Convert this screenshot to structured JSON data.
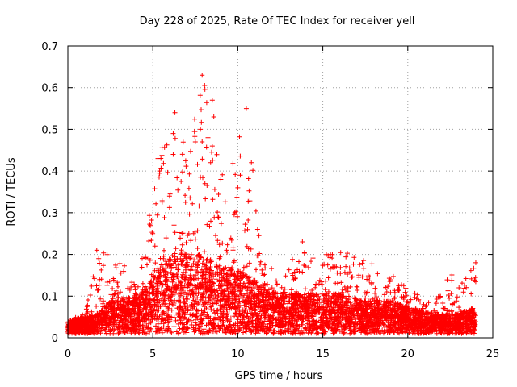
{
  "chart_data": {
    "type": "scatter",
    "title": "Day 228 of 2025, Rate Of TEC Index for receiver yell",
    "xlabel": "GPS time / hours",
    "ylabel": "ROTI / TECUs",
    "xlim": [
      0,
      25
    ],
    "ylim": [
      0,
      0.7
    ],
    "xticks": [
      0,
      5,
      10,
      15,
      20,
      25
    ],
    "yticks": [
      0,
      0.1,
      0.2,
      0.3,
      0.4,
      0.5,
      0.6,
      0.7
    ],
    "xtick_labels": [
      "0",
      "5",
      "10",
      "15",
      "20",
      "25"
    ],
    "ytick_labels": [
      "0",
      "0.1",
      "0.2",
      "0.3",
      "0.4",
      "0.5",
      "0.6",
      "0.7"
    ],
    "grid": true,
    "marker": "+",
    "color": "#ff0000",
    "series": [
      {
        "name": "ROTI",
        "x_range": [
          0,
          24
        ],
        "envelope": [
          {
            "x": 0.0,
            "typical": 0.02,
            "max": 0.04
          },
          {
            "x": 1.0,
            "typical": 0.025,
            "max": 0.06
          },
          {
            "x": 1.8,
            "typical": 0.03,
            "max": 0.21
          },
          {
            "x": 2.5,
            "typical": 0.05,
            "max": 0.2
          },
          {
            "x": 3.3,
            "typical": 0.05,
            "max": 0.18
          },
          {
            "x": 4.2,
            "typical": 0.06,
            "max": 0.15
          },
          {
            "x": 4.8,
            "typical": 0.08,
            "max": 0.31
          },
          {
            "x": 5.3,
            "typical": 0.1,
            "max": 0.43
          },
          {
            "x": 6.3,
            "typical": 0.12,
            "max": 0.54
          },
          {
            "x": 7.2,
            "typical": 0.12,
            "max": 0.47
          },
          {
            "x": 7.9,
            "typical": 0.12,
            "max": 0.63
          },
          {
            "x": 8.5,
            "typical": 0.11,
            "max": 0.57
          },
          {
            "x": 9.3,
            "typical": 0.1,
            "max": 0.35
          },
          {
            "x": 10.5,
            "typical": 0.09,
            "max": 0.55
          },
          {
            "x": 11.5,
            "typical": 0.07,
            "max": 0.2
          },
          {
            "x": 12.5,
            "typical": 0.06,
            "max": 0.15
          },
          {
            "x": 13.8,
            "typical": 0.06,
            "max": 0.23
          },
          {
            "x": 15.0,
            "typical": 0.06,
            "max": 0.2
          },
          {
            "x": 16.0,
            "typical": 0.06,
            "max": 0.21
          },
          {
            "x": 17.5,
            "typical": 0.05,
            "max": 0.19
          },
          {
            "x": 19.0,
            "typical": 0.05,
            "max": 0.16
          },
          {
            "x": 20.0,
            "typical": 0.04,
            "max": 0.12
          },
          {
            "x": 21.5,
            "typical": 0.03,
            "max": 0.08
          },
          {
            "x": 22.5,
            "typical": 0.03,
            "max": 0.16
          },
          {
            "x": 23.0,
            "typical": 0.03,
            "max": 0.12
          },
          {
            "x": 24.0,
            "typical": 0.04,
            "max": 0.19
          }
        ],
        "notable_points": [
          {
            "x": 7.9,
            "y": 0.63
          },
          {
            "x": 8.5,
            "y": 0.57
          },
          {
            "x": 10.5,
            "y": 0.55
          },
          {
            "x": 6.3,
            "y": 0.54
          },
          {
            "x": 7.8,
            "y": 0.5
          },
          {
            "x": 6.2,
            "y": 0.49
          },
          {
            "x": 7.9,
            "y": 0.47
          },
          {
            "x": 7.5,
            "y": 0.47
          },
          {
            "x": 8.5,
            "y": 0.46
          },
          {
            "x": 5.3,
            "y": 0.43
          },
          {
            "x": 6.2,
            "y": 0.44
          },
          {
            "x": 10.8,
            "y": 0.42
          },
          {
            "x": 5.4,
            "y": 0.4
          },
          {
            "x": 8.4,
            "y": 0.42
          },
          {
            "x": 9.0,
            "y": 0.38
          },
          {
            "x": 10.0,
            "y": 0.36
          },
          {
            "x": 13.8,
            "y": 0.23
          },
          {
            "x": 1.7,
            "y": 0.21
          },
          {
            "x": 24.0,
            "y": 0.18
          }
        ]
      }
    ]
  }
}
